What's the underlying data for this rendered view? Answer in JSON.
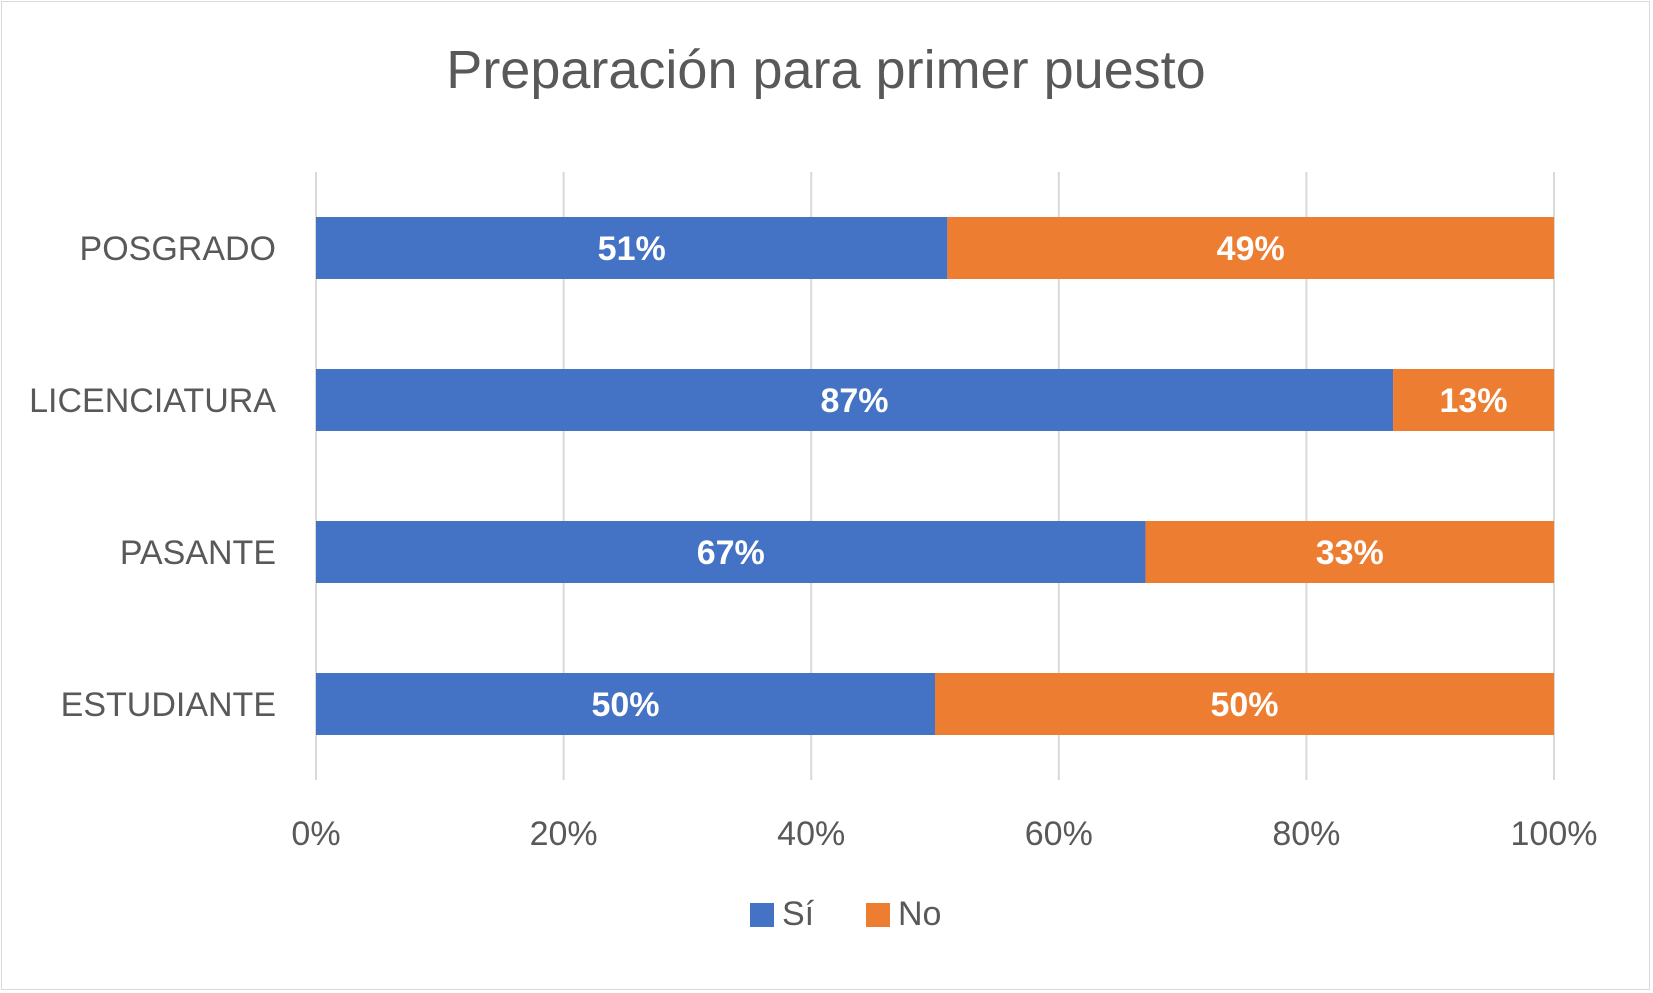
{
  "chart_data": {
    "type": "bar",
    "orientation": "horizontal",
    "stacked": "percent",
    "title": "Preparación para primer puesto",
    "categories": [
      "POSGRADO",
      "LICENCIATURA",
      "PASANTE",
      "ESTUDIANTE"
    ],
    "series": [
      {
        "name": "Sí",
        "color": "#4472c4",
        "values": [
          51,
          87,
          67,
          50
        ],
        "labels": [
          "51%",
          "87%",
          "67%",
          "50%"
        ]
      },
      {
        "name": "No",
        "color": "#ed7d31",
        "values": [
          49,
          13,
          33,
          50
        ],
        "labels": [
          "49%",
          "13%",
          "33%",
          "50%"
        ]
      }
    ],
    "xlim": [
      0,
      100
    ],
    "xticks": [
      0,
      20,
      40,
      60,
      80,
      100
    ],
    "xtick_labels": [
      "0%",
      "20%",
      "40%",
      "60%",
      "80%",
      "100%"
    ],
    "grid": true,
    "legend": "bottom"
  }
}
